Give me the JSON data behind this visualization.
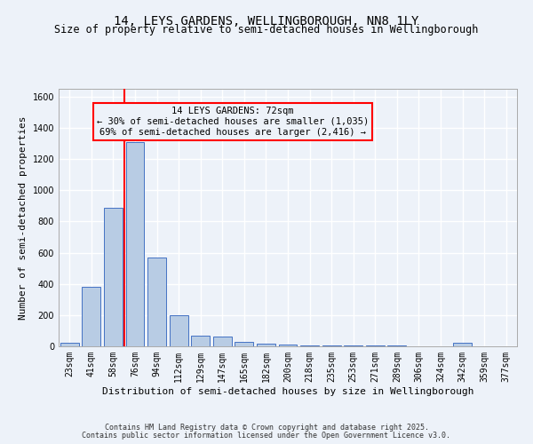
{
  "title": "14, LEYS GARDENS, WELLINGBOROUGH, NN8 1LY",
  "subtitle": "Size of property relative to semi-detached houses in Wellingborough",
  "xlabel": "Distribution of semi-detached houses by size in Wellingborough",
  "ylabel": "Number of semi-detached properties",
  "categories": [
    "23sqm",
    "41sqm",
    "58sqm",
    "76sqm",
    "94sqm",
    "112sqm",
    "129sqm",
    "147sqm",
    "165sqm",
    "182sqm",
    "200sqm",
    "218sqm",
    "235sqm",
    "253sqm",
    "271sqm",
    "289sqm",
    "306sqm",
    "324sqm",
    "342sqm",
    "359sqm",
    "377sqm"
  ],
  "values": [
    20,
    380,
    890,
    1310,
    570,
    200,
    70,
    65,
    30,
    15,
    10,
    5,
    5,
    5,
    5,
    5,
    0,
    0,
    20,
    0,
    0
  ],
  "bar_color": "#b8cce4",
  "bar_edge_color": "#4472c4",
  "vline_x_index": 3,
  "vline_color": "red",
  "annotation_title": "14 LEYS GARDENS: 72sqm",
  "annotation_line1": "← 30% of semi-detached houses are smaller (1,035)",
  "annotation_line2": "69% of semi-detached houses are larger (2,416) →",
  "annotation_box_color": "red",
  "ylim": [
    0,
    1650
  ],
  "yticks": [
    0,
    200,
    400,
    600,
    800,
    1000,
    1200,
    1400,
    1600
  ],
  "footer1": "Contains HM Land Registry data © Crown copyright and database right 2025.",
  "footer2": "Contains public sector information licensed under the Open Government Licence v3.0.",
  "bg_color": "#edf2f9",
  "grid_color": "white",
  "title_fontsize": 10,
  "subtitle_fontsize": 8.5,
  "annotation_fontsize": 7.5,
  "ylabel_fontsize": 8,
  "xlabel_fontsize": 8,
  "tick_fontsize": 7,
  "footer_fontsize": 6
}
